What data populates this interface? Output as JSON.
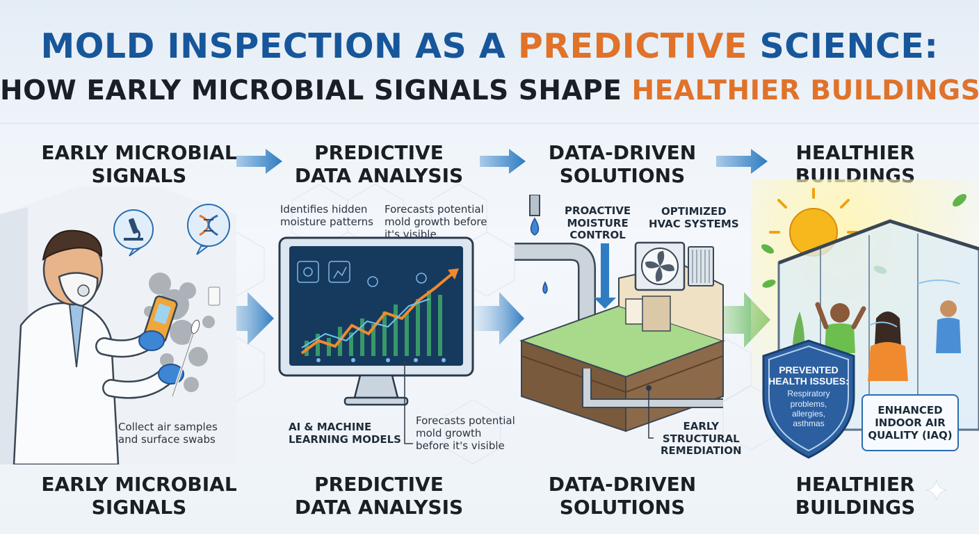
{
  "title": {
    "line1_part1": "MOLD INSPECTION AS A",
    "line1_accent": "PREDICTIVE",
    "line1_part2": "SCIENCE:",
    "line2_part1": "HOW EARLY MICROBIAL SIGNALS SHAPE",
    "line2_accent": "HEALTHIER BUILDINGS"
  },
  "steps": [
    {
      "line1": "EARLY MICROBIAL",
      "line2": "SIGNALS"
    },
    {
      "line1": "PREDICTIVE",
      "line2": "DATA ANALYSIS"
    },
    {
      "line1": "DATA-DRIVEN",
      "line2": "SOLUTIONS"
    },
    {
      "line1": "HEALTHIER",
      "line2": "BUILDINGS"
    }
  ],
  "panel1": {
    "caption_line1": "Collect air samples",
    "caption_line2": "and surface swabs"
  },
  "panel2": {
    "note_left_line1": "Identifies hidden",
    "note_left_line2": "moisture patterns",
    "note_right_line1": "Forecasts potential",
    "note_right_line2": "mold growth before",
    "note_right_line3": "it's visible",
    "models_line1": "AI & MACHINE",
    "models_line2": "LEARNING MODELS",
    "note_bottom_line1": "Forecasts potential",
    "note_bottom_line2": "mold growth",
    "note_bottom_line3": "before it's visible"
  },
  "panel3": {
    "moisture_line1": "PROACTIVE",
    "moisture_line2": "MOISTURE",
    "moisture_line3": "CONTROL",
    "hvac_line1": "OPTIMIZED",
    "hvac_line2": "HVAC SYSTEMS",
    "remediation_line1": "EARLY",
    "remediation_line2": "STRUCTURAL",
    "remediation_line3": "REMEDIATION"
  },
  "panel4": {
    "shield_title_line1": "PREVENTED",
    "shield_title_line2": "HEALTH ISSUES:",
    "shield_body_line1": "Respiratory",
    "shield_body_line2": "problems,",
    "shield_body_line3": "allergies,",
    "shield_body_line4": "asthmas",
    "iaq_line1": "ENHANCED",
    "iaq_line2": "INDOOR AIR",
    "iaq_line3": "QUALITY (IAQ)"
  },
  "colors": {
    "title_blue": "#17569a",
    "accent_orange": "#e0722a",
    "arrow_blue": "#2e7cc1",
    "arrow_green": "#5cb85c",
    "shield_blue": "#2b5fa0"
  }
}
